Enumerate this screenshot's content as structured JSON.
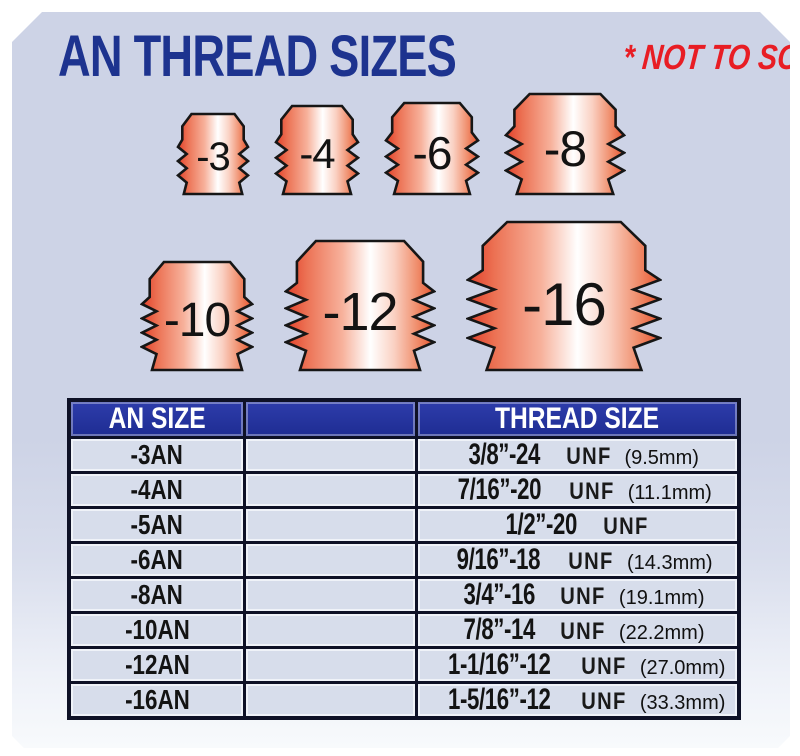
{
  "header": {
    "title": "AN THREAD SIZES",
    "note": "* NOT TO SCALE *"
  },
  "colors": {
    "panel_bg": "#cdd3e6",
    "title_blue": "#1d338f",
    "note_red": "#e81d24",
    "table_header_bg": "#22309c",
    "table_border": "#0e1126",
    "cell_bg": "#d7ddeb",
    "fitting_red": "#e2402a",
    "fitting_highlight": "#ffffff"
  },
  "fittings": {
    "row1": [
      {
        "label": "-3"
      },
      {
        "label": "-4"
      },
      {
        "label": "-6"
      },
      {
        "label": "-8"
      }
    ],
    "row2": [
      {
        "label": "-10"
      },
      {
        "label": "-12"
      },
      {
        "label": "-16"
      }
    ]
  },
  "table": {
    "headers": [
      "AN SIZE",
      "",
      "THREAD SIZE"
    ],
    "rows": [
      {
        "an": "-3AN",
        "middle": "",
        "thread": "3/8”-24",
        "unit": "UNF",
        "mm": "(9.5mm)"
      },
      {
        "an": "-4AN",
        "middle": "",
        "thread": "7/16”-20",
        "unit": "UNF",
        "mm": "(11.1mm)"
      },
      {
        "an": "-5AN",
        "middle": "",
        "thread": "1/2”-20",
        "unit": "UNF",
        "mm": ""
      },
      {
        "an": "-6AN",
        "middle": "",
        "thread": "9/16”-18",
        "unit": "UNF",
        "mm": "(14.3mm)"
      },
      {
        "an": "-8AN",
        "middle": "",
        "thread": "3/4”-16",
        "unit": "UNF",
        "mm": "(19.1mm)"
      },
      {
        "an": "-10AN",
        "middle": "",
        "thread": "7/8”-14",
        "unit": "UNF",
        "mm": "(22.2mm)"
      },
      {
        "an": "-12AN",
        "middle": "",
        "thread": "1-1/16”-12",
        "unit": "UNF",
        "mm": "(27.0mm)"
      },
      {
        "an": "-16AN",
        "middle": "",
        "thread": "1-5/16”-12",
        "unit": "UNF",
        "mm": "(33.3mm)"
      }
    ]
  }
}
